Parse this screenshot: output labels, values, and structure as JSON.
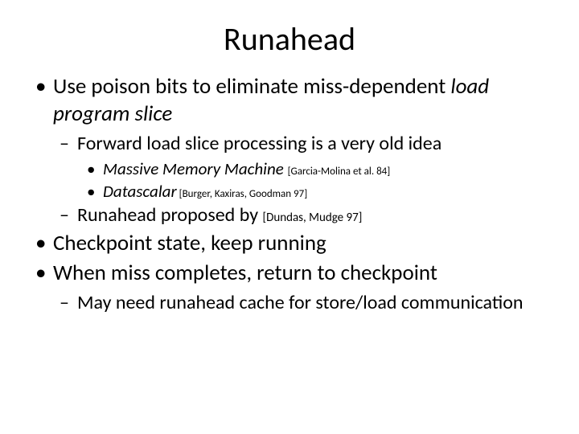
{
  "title": "Runahead",
  "bullets": {
    "b1_pre": "Use poison bits to eliminate miss-dependent ",
    "b1_it": "load program slice",
    "b1a": "Forward load slice processing is a very old idea",
    "b1a1_it": "Massive Memory Machine ",
    "b1a1_cite": "[Garcia-Molina et al. 84]",
    "b1a2_it": "Datascalar",
    "b1a2_cite": " [Burger, Kaxiras, Goodman 97]",
    "b1b_pre": "Runahead proposed by ",
    "b1b_cite": "[Dundas, Mudge 97]",
    "b2": "Checkpoint state, keep running",
    "b3": "When miss completes, return to checkpoint",
    "b3a": "May need runahead cache for store/load communication"
  },
  "colors": {
    "background": "#ffffff",
    "text": "#000000"
  },
  "fonts": {
    "family": "Calibri",
    "title_size": 40,
    "lvl1_size": 27,
    "lvl2_size": 24,
    "lvl3_size": 21,
    "cite_size": 13
  }
}
